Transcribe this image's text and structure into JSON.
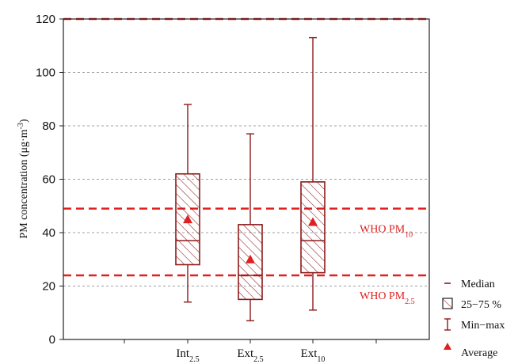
{
  "chart_data": {
    "type": "box",
    "ylabel": "PM concentration (μg·m",
    "ylabel_sup": "-3",
    "ylabel_close": ")",
    "ylim": [
      0,
      120
    ],
    "yticks": [
      0,
      20,
      40,
      60,
      80,
      100,
      120
    ],
    "grid": "horizontal dashed",
    "categories": [
      {
        "base": "Int",
        "sub": "2.5"
      },
      {
        "base": "Ext",
        "sub": "2.5"
      },
      {
        "base": "Ext",
        "sub": "10"
      }
    ],
    "boxes": [
      {
        "min": 14,
        "q1": 28,
        "median": 37,
        "q3": 62,
        "max": 88,
        "average": 45
      },
      {
        "min": 7,
        "q1": 15,
        "median": 24,
        "q3": 43,
        "max": 77,
        "average": 30
      },
      {
        "min": 11,
        "q1": 25,
        "median": 37,
        "q3": 59,
        "max": 113,
        "average": 44
      }
    ],
    "reference_lines": [
      {
        "value": 49,
        "label": "WHO PM",
        "sub": "10"
      },
      {
        "value": 24,
        "label": "WHO PM",
        "sub": "2.5"
      }
    ],
    "legend": {
      "placement": "bottom-right",
      "items": [
        "Median",
        "25−75 %",
        "Min−max",
        "Average"
      ]
    },
    "colors": {
      "box": "#8b1a1a",
      "reference": "#e02020",
      "average_marker": "#e02020",
      "grid": "#a0a0a0"
    }
  }
}
